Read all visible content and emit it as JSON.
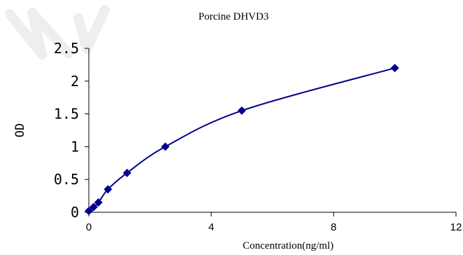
{
  "chart_data": {
    "type": "line",
    "title": "Porcine DHVD3",
    "xlabel": "Concentration(ng/ml)",
    "ylabel": "OD",
    "xlim": [
      0,
      12
    ],
    "ylim": [
      0,
      2.5
    ],
    "x_ticks": [
      "0",
      "4",
      "8",
      "12"
    ],
    "y_ticks": [
      "0",
      "0.5",
      "1",
      "1.5",
      "2",
      "2.5"
    ],
    "grid": false,
    "marker": "diamond",
    "series_color": "#00008B",
    "points": [
      {
        "x": 0,
        "y": 0.02
      },
      {
        "x": 0.156,
        "y": 0.08
      },
      {
        "x": 0.313,
        "y": 0.15
      },
      {
        "x": 0.625,
        "y": 0.35
      },
      {
        "x": 1.25,
        "y": 0.6
      },
      {
        "x": 2.5,
        "y": 1.0
      },
      {
        "x": 5,
        "y": 1.55
      },
      {
        "x": 10,
        "y": 2.2
      }
    ]
  }
}
